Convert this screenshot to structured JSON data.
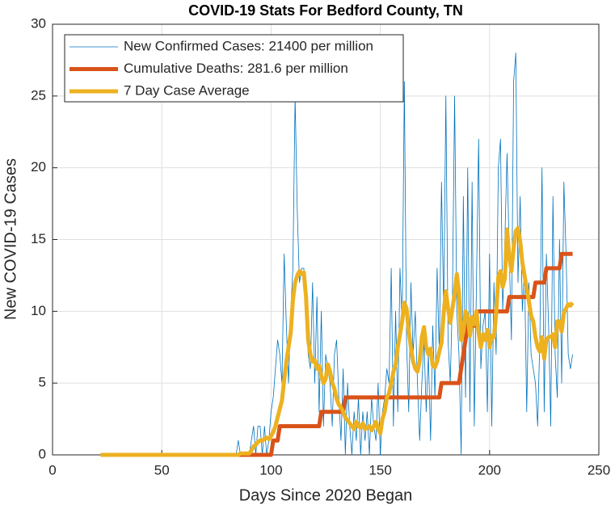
{
  "chart_data": {
    "type": "line",
    "title": "COVID-19 Stats For Bedford County, TN",
    "xlabel": "Days Since 2020 Began",
    "ylabel": "New COVID-19 Cases",
    "xlim": [
      0,
      250
    ],
    "xticks": [
      0,
      50,
      100,
      150,
      200,
      250
    ],
    "ylim": [
      0,
      30
    ],
    "yticks": [
      0,
      5,
      10,
      15,
      20,
      25,
      30
    ],
    "grid": true,
    "legend": "upper left",
    "x": [
      22,
      23,
      24,
      25,
      26,
      27,
      28,
      29,
      30,
      31,
      32,
      33,
      34,
      35,
      36,
      37,
      38,
      39,
      40,
      41,
      42,
      43,
      44,
      45,
      46,
      47,
      48,
      49,
      50,
      51,
      52,
      53,
      54,
      55,
      56,
      57,
      58,
      59,
      60,
      61,
      62,
      63,
      64,
      65,
      66,
      67,
      68,
      69,
      70,
      71,
      72,
      73,
      74,
      75,
      76,
      77,
      78,
      79,
      80,
      81,
      82,
      83,
      84,
      85,
      86,
      87,
      88,
      89,
      90,
      91,
      92,
      93,
      94,
      95,
      96,
      97,
      98,
      99,
      100,
      101,
      102,
      103,
      104,
      105,
      106,
      107,
      108,
      109,
      110,
      111,
      112,
      113,
      114,
      115,
      116,
      117,
      118,
      119,
      120,
      121,
      122,
      123,
      124,
      125,
      126,
      127,
      128,
      129,
      130,
      131,
      132,
      133,
      134,
      135,
      136,
      137,
      138,
      139,
      140,
      141,
      142,
      143,
      144,
      145,
      146,
      147,
      148,
      149,
      150,
      151,
      152,
      153,
      154,
      155,
      156,
      157,
      158,
      159,
      160,
      161,
      162,
      163,
      164,
      165,
      166,
      167,
      168,
      169,
      170,
      171,
      172,
      173,
      174,
      175,
      176,
      177,
      178,
      179,
      180,
      181,
      182,
      183,
      184,
      185,
      186,
      187,
      188,
      189,
      190,
      191,
      192,
      193,
      194,
      195,
      196,
      197,
      198,
      199,
      200,
      201,
      202,
      203,
      204,
      205,
      206,
      207,
      208,
      209,
      210,
      211,
      212,
      213,
      214,
      215,
      216,
      217,
      218,
      219,
      220,
      221,
      222,
      223,
      224,
      225,
      226,
      227,
      228,
      229,
      230,
      231,
      232,
      233,
      234,
      235,
      236,
      237,
      238
    ],
    "series": [
      {
        "name": "New Confirmed Cases: 21400 per million",
        "color": "#0072BD",
        "width": 0.8,
        "values": [
          0,
          0,
          0,
          0,
          0,
          0,
          0,
          0,
          0,
          0,
          0,
          0,
          0,
          0,
          0,
          0,
          0,
          0,
          0,
          0,
          0,
          0,
          0,
          0,
          0,
          0,
          0,
          0,
          0,
          0,
          0,
          0,
          0,
          0,
          0,
          0,
          0,
          0,
          0,
          0,
          0,
          0,
          0,
          0,
          0,
          0,
          0,
          0,
          0,
          0,
          0,
          0,
          0,
          0,
          0,
          0,
          0,
          0,
          0,
          0,
          0,
          0,
          0,
          1,
          0,
          0,
          0,
          0,
          0,
          1,
          2,
          0,
          2,
          2,
          0,
          2,
          0,
          1,
          3,
          4,
          6,
          8,
          7,
          5,
          14,
          9,
          5,
          10,
          13,
          25,
          17,
          12,
          13,
          13,
          10,
          7,
          6,
          12,
          5,
          11,
          3,
          10,
          2,
          7,
          6,
          5,
          2,
          7,
          8,
          4,
          1,
          6,
          0,
          5,
          2,
          0,
          3,
          1,
          4,
          0,
          3,
          1,
          3,
          0,
          4,
          2,
          1,
          5,
          0,
          3,
          4,
          6,
          5,
          13,
          2,
          10,
          3,
          13,
          9,
          26,
          8,
          3,
          12,
          7,
          10,
          5,
          1,
          5,
          8,
          3,
          7,
          1,
          9,
          4,
          13,
          7,
          19,
          10,
          25,
          8,
          5,
          11,
          25,
          10,
          7,
          0,
          18,
          4,
          20,
          3,
          19,
          2,
          12,
          22,
          6,
          9,
          10,
          3,
          14,
          2,
          12,
          7,
          20,
          22,
          10,
          15,
          21,
          14,
          8,
          26,
          28,
          12,
          18,
          10,
          13,
          3,
          12,
          7,
          6,
          5,
          2,
          8,
          20,
          3,
          14,
          9,
          2,
          18,
          7,
          4,
          15,
          5,
          19,
          14,
          7,
          6,
          7
        ]
      },
      {
        "name": "Cumulative Deaths: 281.6 per million",
        "color": "#D95319",
        "width": 5,
        "values": [
          0,
          0,
          0,
          0,
          0,
          0,
          0,
          0,
          0,
          0,
          0,
          0,
          0,
          0,
          0,
          0,
          0,
          0,
          0,
          0,
          0,
          0,
          0,
          0,
          0,
          0,
          0,
          0,
          0,
          0,
          0,
          0,
          0,
          0,
          0,
          0,
          0,
          0,
          0,
          0,
          0,
          0,
          0,
          0,
          0,
          0,
          0,
          0,
          0,
          0,
          0,
          0,
          0,
          0,
          0,
          0,
          0,
          0,
          0,
          0,
          0,
          0,
          0,
          0,
          0,
          0,
          0,
          0,
          0,
          0,
          0,
          0,
          0,
          0,
          0,
          0,
          0,
          0,
          0,
          1,
          1,
          1,
          2,
          2,
          2,
          2,
          2,
          2,
          2,
          2,
          2,
          2,
          2,
          2,
          2,
          2,
          2,
          2,
          2,
          2,
          2,
          3,
          3,
          3,
          3,
          3,
          3,
          3,
          3,
          3,
          3,
          3,
          4,
          4,
          4,
          4,
          4,
          4,
          4,
          4,
          4,
          4,
          4,
          4,
          4,
          4,
          4,
          4,
          4,
          4,
          4,
          4,
          4,
          4,
          4,
          4,
          4,
          4,
          4,
          4,
          4,
          4,
          4,
          4,
          4,
          4,
          4,
          4,
          4,
          4,
          4,
          4,
          4,
          4,
          4,
          4,
          5,
          5,
          5,
          5,
          5,
          5,
          5,
          5,
          5,
          6,
          7,
          8,
          9,
          9,
          9,
          9,
          10,
          10,
          10,
          10,
          10,
          10,
          10,
          10,
          10,
          10,
          10,
          10,
          10,
          10,
          10,
          11,
          11,
          11,
          11,
          11,
          11,
          11,
          11,
          11,
          11,
          11,
          11,
          12,
          12,
          12,
          12,
          12,
          13,
          13,
          13,
          13,
          13,
          13,
          13,
          14,
          14,
          14,
          14,
          14,
          14
        ]
      },
      {
        "name": "7 Day Case Average",
        "color": "#EDB120",
        "width": 5,
        "values": [
          0,
          0,
          0,
          0,
          0,
          0,
          0,
          0,
          0,
          0,
          0,
          0,
          0,
          0,
          0,
          0,
          0,
          0,
          0,
          0,
          0,
          0,
          0,
          0,
          0,
          0,
          0,
          0,
          0,
          0,
          0,
          0,
          0,
          0,
          0,
          0,
          0,
          0,
          0,
          0,
          0,
          0,
          0,
          0,
          0,
          0,
          0,
          0,
          0,
          0,
          0,
          0,
          0,
          0,
          0,
          0,
          0,
          0,
          0,
          0,
          0,
          0,
          0,
          0,
          0.1,
          0.1,
          0.1,
          0.1,
          0.1,
          0.3,
          0.6,
          0.7,
          0.9,
          1,
          1,
          1.1,
          1.2,
          1.1,
          1.3,
          1.6,
          2,
          2.6,
          3.2,
          3.8,
          5.2,
          6.5,
          7.5,
          8.5,
          10.8,
          12,
          12.5,
          12.8,
          12.6,
          12.7,
          11,
          8,
          7,
          6.5,
          6.6,
          6,
          6.2,
          5.5,
          5,
          5.3,
          6.3,
          5.8,
          5,
          4.6,
          3.9,
          3.5,
          3.3,
          3,
          2.6,
          2.4,
          2.2,
          2,
          1.8,
          2.3,
          2,
          1.9,
          2.2,
          1.8,
          1.9,
          2,
          1.7,
          2,
          2.3,
          1.8,
          1.5,
          2.5,
          3,
          4,
          4.3,
          5,
          5.8,
          6.3,
          7.5,
          8.4,
          9.3,
          10.6,
          10.2,
          8.6,
          7.5,
          6.5,
          6,
          5.8,
          6.5,
          8.2,
          8.9,
          7.5,
          7,
          7.4,
          6.2,
          6.1,
          6.5,
          7.2,
          7.8,
          9.9,
          11.4,
          10.2,
          9.2,
          10.2,
          11.2,
          12.6,
          11.3,
          8,
          8.6,
          10,
          9.7,
          8.3,
          9.6,
          9.1,
          10,
          8.5,
          7.5,
          8.4,
          8,
          8.7,
          7.5,
          8.3,
          8.2,
          9.8,
          12.4,
          12.8,
          11.7,
          12.3,
          15.7,
          13.8,
          12.8,
          14.4,
          15.6,
          15.8,
          14.9,
          13.4,
          12.5,
          11.6,
          10.7,
          9.7,
          9.3,
          8.2,
          7.5,
          7.2,
          8.2,
          6.7,
          8,
          8.2,
          8.2,
          8.4,
          7.5,
          9.3,
          9.3,
          8.6,
          9.9,
          10.2,
          10.5,
          10.4,
          10.6
        ]
      }
    ]
  }
}
